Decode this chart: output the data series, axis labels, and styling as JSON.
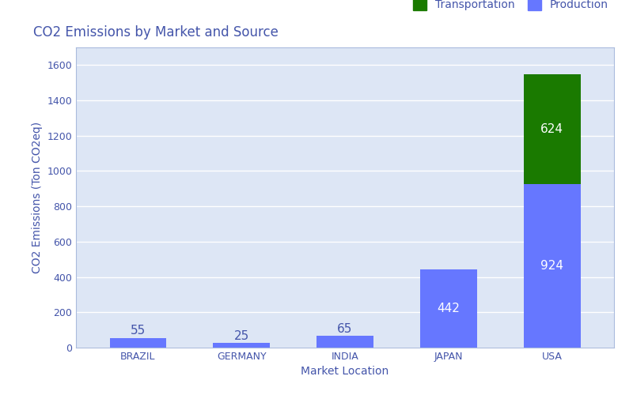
{
  "markets": [
    "BRAZIL",
    "GERMANY",
    "INDIA",
    "JAPAN",
    "USA"
  ],
  "production": [
    55,
    25,
    65,
    442,
    924
  ],
  "transportation": [
    0,
    0,
    0,
    0,
    624
  ],
  "production_color": "#6677ff",
  "transportation_color": "#1a7a00",
  "title": "CO2 Emissions by Market and Source",
  "xlabel": "Market Location",
  "ylabel": "CO2 Emissions (Ton CO2eq)",
  "figure_bg_color": "#ffffff",
  "plot_bg_color": "#dde6f5",
  "ylim": [
    0,
    1700
  ],
  "yticks": [
    0,
    200,
    400,
    600,
    800,
    1000,
    1200,
    1400,
    1600
  ],
  "legend_labels": [
    "Transportation",
    "Production"
  ],
  "legend_colors": [
    "#1a7a00",
    "#6677ff"
  ],
  "title_color": "#4455aa",
  "axis_label_color": "#4455aa",
  "tick_label_color": "#4455aa",
  "bar_width": 0.55,
  "label_fontsize": 11,
  "title_fontsize": 12
}
